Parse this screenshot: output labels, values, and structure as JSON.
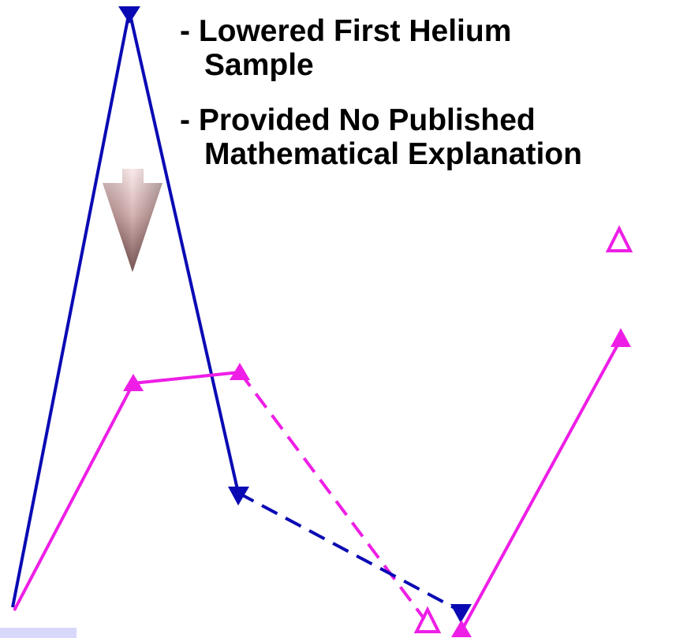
{
  "bullets": [
    {
      "line1": "- Lowered First Helium",
      "line2": "Sample"
    },
    {
      "line1": "- Provided No Published",
      "line2": "Mathematical Explanation"
    }
  ],
  "colors": {
    "blue": "#0a0ab4",
    "magenta": "#ee1ee6",
    "arrow_top": "#fbe4e4",
    "arrow_bottom": "#4a1c1c",
    "corner_tab": "#d8d8fb"
  },
  "icons": {
    "down_arrow": "down-arrow-icon",
    "filled_triangle": "filled-triangle-marker",
    "open_triangle": "open-triangle-marker",
    "inverted_triangle": "inverted-triangle-marker"
  }
}
